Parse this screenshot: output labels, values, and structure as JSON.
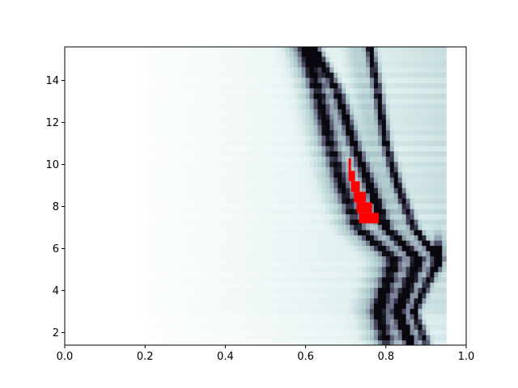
{
  "chart_data": {
    "type": "heatmap",
    "title": "",
    "xlabel": "",
    "ylabel": "",
    "xlim": [
      0.0,
      1.0
    ],
    "ylim": [
      1.4,
      15.6
    ],
    "grid": false,
    "legend": "none",
    "colormap": "bone_r",
    "x_ticks": [
      0.0,
      0.2,
      0.4,
      0.6,
      0.8,
      1.0
    ],
    "x_tick_labels": [
      "0.0",
      "0.2",
      "0.4",
      "0.6",
      "0.8",
      "1.0"
    ],
    "y_ticks": [
      2,
      4,
      6,
      8,
      10,
      12,
      14
    ],
    "y_tick_labels": [
      "2",
      "4",
      "6",
      "8",
      "10",
      "12",
      "14"
    ],
    "data_x_range": [
      0.0,
      0.95
    ],
    "ridges": [
      {
        "x_at_y": [
          [
            1.5,
            0.9
          ],
          [
            3.0,
            0.87
          ],
          [
            5.5,
            0.93
          ],
          [
            7.0,
            0.87
          ],
          [
            9.0,
            0.83
          ],
          [
            11.0,
            0.8
          ],
          [
            13.5,
            0.78
          ],
          [
            15.6,
            0.76
          ]
        ],
        "intensity": 0.75
      },
      {
        "x_at_y": [
          [
            1.5,
            0.86
          ],
          [
            3.0,
            0.83
          ],
          [
            5.5,
            0.88
          ],
          [
            7.0,
            0.8
          ],
          [
            9.0,
            0.76
          ],
          [
            11.0,
            0.72
          ],
          [
            13.5,
            0.68
          ],
          [
            15.6,
            0.62
          ]
        ],
        "intensity": 0.8
      },
      {
        "x_at_y": [
          [
            1.5,
            0.8
          ],
          [
            3.0,
            0.78
          ],
          [
            5.5,
            0.82
          ],
          [
            7.0,
            0.73
          ],
          [
            9.0,
            0.69
          ],
          [
            11.0,
            0.66
          ],
          [
            13.5,
            0.63
          ],
          [
            15.6,
            0.6
          ]
        ],
        "intensity": 0.7
      }
    ],
    "highlight_color": "#ff0000",
    "highlight_cells": [
      {
        "y": [
          9.7,
          10.3
        ],
        "x": [
          0.707,
          0.713
        ]
      },
      {
        "y": [
          9.2,
          9.7
        ],
        "x": [
          0.707,
          0.723
        ]
      },
      {
        "y": [
          8.7,
          9.2
        ],
        "x": [
          0.713,
          0.735
        ]
      },
      {
        "y": [
          8.2,
          8.7
        ],
        "x": [
          0.72,
          0.75
        ]
      },
      {
        "y": [
          7.7,
          8.2
        ],
        "x": [
          0.727,
          0.765
        ]
      },
      {
        "y": [
          7.2,
          7.7
        ],
        "x": [
          0.733,
          0.782
        ]
      }
    ]
  }
}
